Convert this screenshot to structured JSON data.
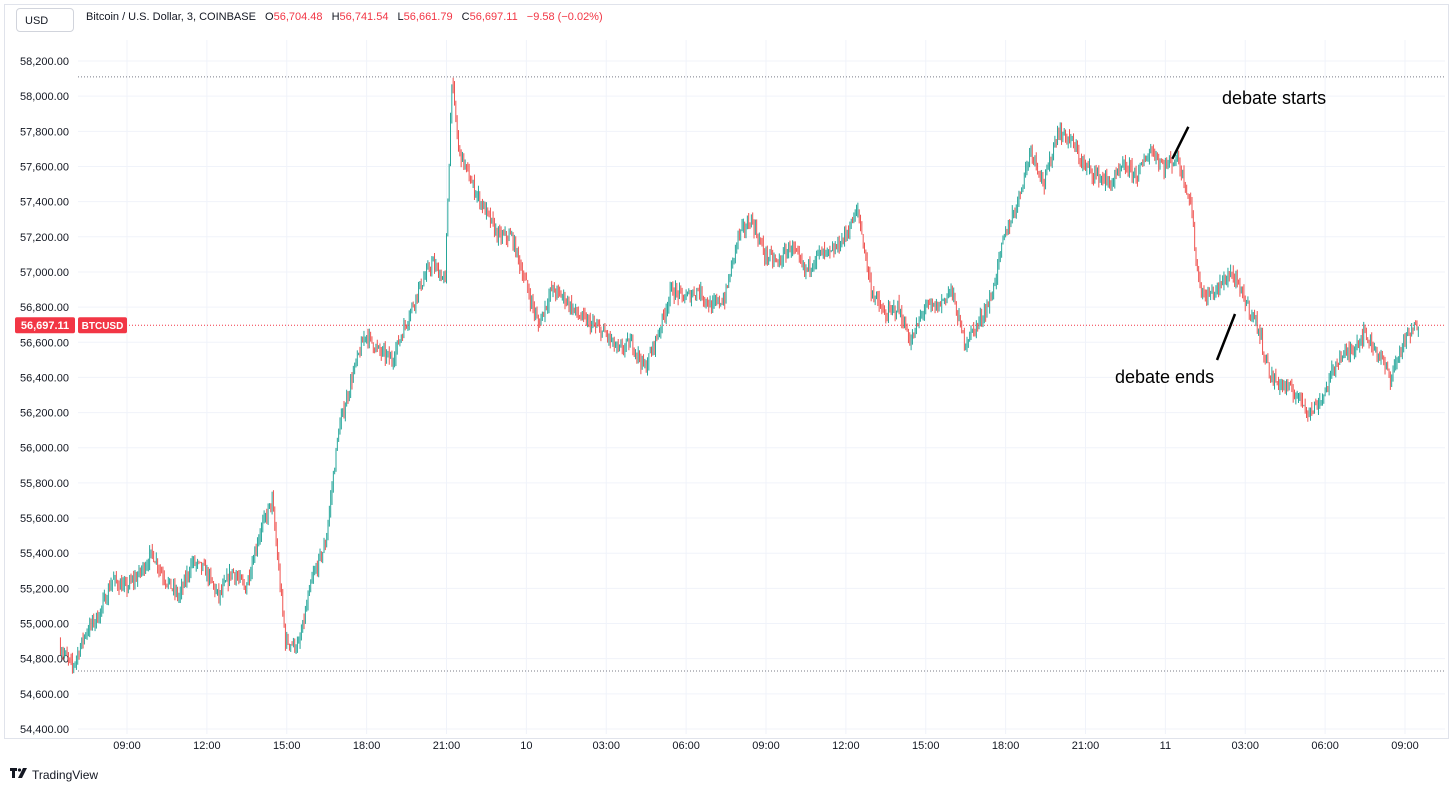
{
  "header": {
    "currency": "USD",
    "symbol_desc": "Bitcoin / U.S. Dollar, 3, COINBASE",
    "o_label": "O",
    "o_value": "56,704.48",
    "h_label": "H",
    "h_value": "56,741.54",
    "l_label": "L",
    "l_value": "56,661.79",
    "c_label": "C",
    "c_value": "56,697.11",
    "change": "−9.58 (−0.02%)"
  },
  "branding": {
    "name": "TradingView"
  },
  "colors": {
    "up": "#26a69a",
    "down": "#ef5350",
    "price_line": "#f23645",
    "grid": "#f0f3fa"
  },
  "chart_data": {
    "type": "candlestick",
    "ylim": [
      54400,
      58300
    ],
    "y_ticks": [
      "58,200.00",
      "58,000.00",
      "57,800.00",
      "57,600.00",
      "57,400.00",
      "57,200.00",
      "57,000.00",
      "56,800.00",
      "56,600.00",
      "56,400.00",
      "56,200.00",
      "56,000.00",
      "55,800.00",
      "55,600.00",
      "55,400.00",
      "55,200.00",
      "55,000.00",
      "54,800.00",
      "54,600.00",
      "54,400.00"
    ],
    "x_range_hours": [
      6.5,
      57.5
    ],
    "x_ticks": [
      {
        "h": 9,
        "label": "09:00"
      },
      {
        "h": 12,
        "label": "12:00"
      },
      {
        "h": 15,
        "label": "15:00"
      },
      {
        "h": 18,
        "label": "18:00"
      },
      {
        "h": 21,
        "label": "21:00"
      },
      {
        "h": 24,
        "label": "10"
      },
      {
        "h": 27,
        "label": "03:00"
      },
      {
        "h": 30,
        "label": "06:00"
      },
      {
        "h": 33,
        "label": "09:00"
      },
      {
        "h": 36,
        "label": "12:00"
      },
      {
        "h": 39,
        "label": "15:00"
      },
      {
        "h": 42,
        "label": "18:00"
      },
      {
        "h": 45,
        "label": "21:00"
      },
      {
        "h": 48,
        "label": "11"
      },
      {
        "h": 51,
        "label": "03:00"
      },
      {
        "h": 54,
        "label": "06:00"
      },
      {
        "h": 57,
        "label": "09:00"
      }
    ],
    "price_path": [
      [
        6.5,
        54880
      ],
      [
        7.0,
        54750
      ],
      [
        7.5,
        54950
      ],
      [
        8.0,
        55050
      ],
      [
        8.5,
        55250
      ],
      [
        9.0,
        55200
      ],
      [
        9.5,
        55280
      ],
      [
        10.0,
        55400
      ],
      [
        10.5,
        55250
      ],
      [
        11.0,
        55150
      ],
      [
        11.5,
        55350
      ],
      [
        12.0,
        55300
      ],
      [
        12.5,
        55150
      ],
      [
        13.0,
        55300
      ],
      [
        13.5,
        55200
      ],
      [
        14.0,
        55500
      ],
      [
        14.5,
        55700
      ],
      [
        15.0,
        54900
      ],
      [
        15.5,
        54870
      ],
      [
        16.0,
        55250
      ],
      [
        16.5,
        55450
      ],
      [
        17.0,
        56100
      ],
      [
        17.5,
        56400
      ],
      [
        18.0,
        56650
      ],
      [
        18.5,
        56550
      ],
      [
        19.0,
        56500
      ],
      [
        19.5,
        56700
      ],
      [
        20.0,
        56900
      ],
      [
        20.5,
        57050
      ],
      [
        21.0,
        56950
      ],
      [
        21.25,
        58100
      ],
      [
        21.5,
        57700
      ],
      [
        22.0,
        57500
      ],
      [
        22.5,
        57350
      ],
      [
        23.0,
        57200
      ],
      [
        23.5,
        57200
      ],
      [
        24.0,
        56950
      ],
      [
        24.5,
        56700
      ],
      [
        25.0,
        56900
      ],
      [
        25.5,
        56850
      ],
      [
        26.0,
        56750
      ],
      [
        26.5,
        56700
      ],
      [
        27.0,
        56650
      ],
      [
        27.5,
        56550
      ],
      [
        28.0,
        56600
      ],
      [
        28.5,
        56450
      ],
      [
        29.0,
        56650
      ],
      [
        29.5,
        56900
      ],
      [
        30.0,
        56850
      ],
      [
        30.5,
        56900
      ],
      [
        31.0,
        56800
      ],
      [
        31.5,
        56850
      ],
      [
        32.0,
        57200
      ],
      [
        32.5,
        57300
      ],
      [
        33.0,
        57100
      ],
      [
        33.5,
        57050
      ],
      [
        34.0,
        57150
      ],
      [
        34.5,
        57000
      ],
      [
        35.0,
        57100
      ],
      [
        35.5,
        57100
      ],
      [
        36.0,
        57200
      ],
      [
        36.5,
        57350
      ],
      [
        37.0,
        56900
      ],
      [
        37.5,
        56750
      ],
      [
        38.0,
        56800
      ],
      [
        38.5,
        56600
      ],
      [
        39.0,
        56800
      ],
      [
        39.5,
        56800
      ],
      [
        40.0,
        56900
      ],
      [
        40.5,
        56600
      ],
      [
        41.0,
        56700
      ],
      [
        41.5,
        56850
      ],
      [
        42.0,
        57200
      ],
      [
        42.5,
        57400
      ],
      [
        43.0,
        57700
      ],
      [
        43.5,
        57500
      ],
      [
        44.0,
        57800
      ],
      [
        44.5,
        57750
      ],
      [
        45.0,
        57600
      ],
      [
        45.5,
        57550
      ],
      [
        46.0,
        57500
      ],
      [
        46.5,
        57600
      ],
      [
        47.0,
        57550
      ],
      [
        47.5,
        57700
      ],
      [
        48.0,
        57600
      ],
      [
        48.5,
        57650
      ],
      [
        49.0,
        57400
      ],
      [
        49.25,
        57000
      ],
      [
        49.5,
        56850
      ],
      [
        50.0,
        56900
      ],
      [
        50.5,
        57000
      ],
      [
        51.0,
        56850
      ],
      [
        51.5,
        56700
      ],
      [
        52.0,
        56400
      ],
      [
        52.5,
        56350
      ],
      [
        53.0,
        56300
      ],
      [
        53.5,
        56200
      ],
      [
        54.0,
        56300
      ],
      [
        54.5,
        56500
      ],
      [
        55.0,
        56550
      ],
      [
        55.5,
        56650
      ],
      [
        56.0,
        56550
      ],
      [
        56.5,
        56400
      ],
      [
        57.0,
        56600
      ],
      [
        57.5,
        56697
      ]
    ],
    "current_price": 56697.11,
    "current_price_label": "56,697.11",
    "symbol_badge": "BTCUSD",
    "high_line": 58110,
    "low_line": 54730,
    "annotations": [
      {
        "text": "debate starts",
        "x": 48.3,
        "y": 57780
      },
      {
        "text": "debate ends",
        "x": 50.9,
        "y": 56750
      }
    ]
  }
}
